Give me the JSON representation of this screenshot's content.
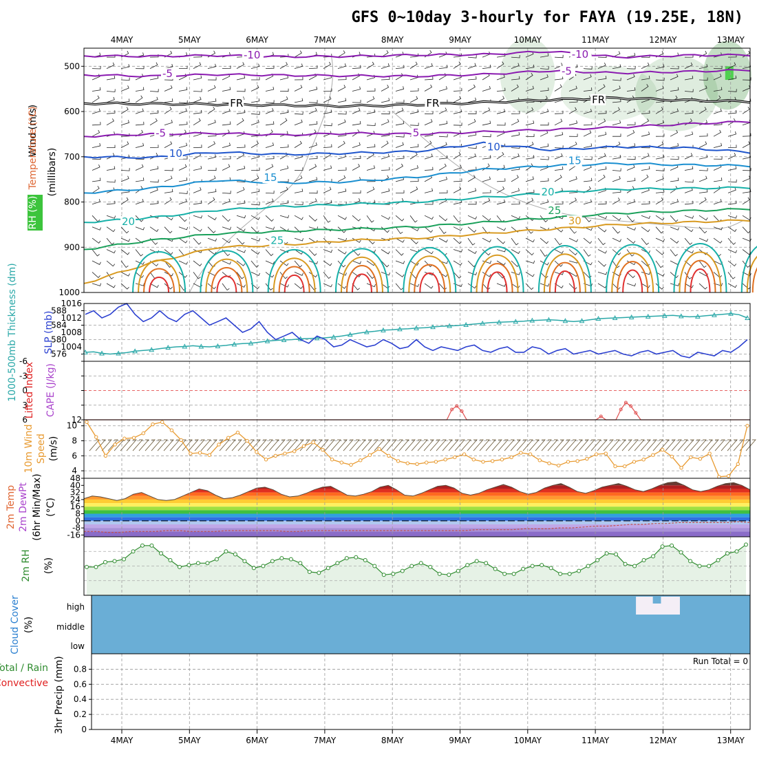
{
  "chart_data": {
    "type": "meteogram",
    "title": "GFS 0~10day 3-hourly for FAYA (19.25E, 18N)",
    "dates": [
      "4MAY",
      "5MAY",
      "6MAY",
      "7MAY",
      "8MAY",
      "9MAY",
      "10MAY",
      "11MAY",
      "12MAY",
      "13MAY"
    ],
    "panels": [
      {
        "name": "upper-air",
        "ylabels": [
          {
            "text": "Wind (m/s)",
            "color": "#000000"
          },
          {
            "text": "Temperature (°C)",
            "color": "#dd6633"
          },
          {
            "text": "RH (%)",
            "color": "#2e8b2e"
          },
          {
            "text": "(millibars)",
            "color": "#000000"
          }
        ],
        "yticks": [
          "500",
          "600",
          "700",
          "800",
          "900",
          "1000"
        ],
        "ylim": [
          1000,
          460
        ],
        "isotherm_labels": [
          {
            "text": "-10",
            "day": 1.8,
            "p": 478,
            "color": "#8a1ab0"
          },
          {
            "text": "-10",
            "day": 6.65,
            "p": 477,
            "color": "#8a1ab0"
          },
          {
            "text": "-5",
            "day": 0.6,
            "p": 519,
            "color": "#8a1ab0"
          },
          {
            "text": "-5",
            "day": 6.5,
            "p": 514,
            "color": "#8a1ab0"
          },
          {
            "text": "FR",
            "day": 1.6,
            "p": 585,
            "color": "#000000"
          },
          {
            "text": "FR",
            "day": 4.5,
            "p": 585,
            "color": "#000000"
          },
          {
            "text": "FR",
            "day": 6.95,
            "p": 577,
            "color": "#000000"
          },
          {
            "text": "-5",
            "day": 0.5,
            "p": 651,
            "color": "#8a1ab0"
          },
          {
            "text": "5",
            "day": 4.3,
            "p": 650,
            "color": "#8a1ab0"
          },
          {
            "text": "10",
            "day": 0.7,
            "p": 696,
            "color": "#1f55cc"
          },
          {
            "text": "10",
            "day": 5.4,
            "p": 681,
            "color": "#1f55cc"
          },
          {
            "text": "15",
            "day": 2.1,
            "p": 749,
            "color": "#1a8fd0"
          },
          {
            "text": "15",
            "day": 6.6,
            "p": 712,
            "color": "#1a8fd0"
          },
          {
            "text": "20",
            "day": 0.0,
            "p": 846,
            "color": "#16b0a8"
          },
          {
            "text": "20",
            "day": 6.2,
            "p": 781,
            "color": "#16b0a8"
          },
          {
            "text": "25",
            "day": 2.2,
            "p": 888,
            "color": "#16b0a8"
          },
          {
            "text": "25",
            "day": 6.3,
            "p": 822,
            "color": "#1aa05a"
          },
          {
            "text": "30",
            "day": 6.6,
            "p": 845,
            "color": "#d89a20"
          }
        ],
        "isotherm_lines": [
          {
            "temp": -10,
            "color": "#8a1ab0",
            "p": [
              477,
              478,
              476,
              479,
              478,
              475,
              474,
              467,
              480,
              476,
              475
            ]
          },
          {
            "temp": -5,
            "color": "#8a1ab0",
            "p": [
              519,
              522,
              518,
              520,
              521,
              522,
              518,
              510,
              515,
              512,
              508
            ]
          },
          {
            "temp": 0,
            "color": "#000000",
            "p": [
              582,
              583,
              584,
              586,
              588,
              585,
              580,
              574,
              570,
              575,
              578
            ]
          },
          {
            "temp": 5,
            "color": "#8a1ab0",
            "p": [
              655,
              650,
              648,
              652,
              648,
              650,
              645,
              640,
              635,
              628,
              622
            ]
          },
          {
            "temp": 10,
            "color": "#1f55cc",
            "p": [
              700,
              702,
              690,
              695,
              692,
              688,
              670,
              685,
              678,
              680,
              690
            ]
          },
          {
            "temp": 15,
            "color": "#1a8fd0",
            "p": [
              780,
              770,
              752,
              758,
              755,
              745,
              728,
              720,
              715,
              718,
              720
            ]
          },
          {
            "temp": 20,
            "color": "#16b0a8",
            "p": [
              845,
              835,
              818,
              810,
              805,
              800,
              790,
              780,
              772,
              770,
              768
            ]
          },
          {
            "temp": 25,
            "color": "#1aa05a",
            "p": [
              905,
              885,
              870,
              865,
              860,
              855,
              845,
              835,
              825,
              820,
              815
            ]
          },
          {
            "temp": 30,
            "color": "#d89a20",
            "p": [
              980,
              935,
              900,
              895,
              885,
              880,
              870,
              860,
              850,
              845,
              840
            ]
          }
        ]
      },
      {
        "name": "thickness-slp",
        "ylabels": [
          {
            "text": "1000-500mb Thickness (dm)",
            "color": "#2aa8a8"
          },
          {
            "text": "SLP (mb)",
            "color": "#2a3fd0"
          }
        ],
        "left_ticks": [
          "588",
          "584",
          "580",
          "576"
        ],
        "right_ticks": [
          "1016",
          "1012",
          "1008",
          "1004"
        ],
        "thickness_series": [
          {
            "color": "#2aa8a8"
          }
        ],
        "slp_series": [
          {
            "color": "#2a3fd0"
          }
        ],
        "thickness_dm": [
          576.5,
          576.6,
          576.2,
          576,
          576.2,
          576.4,
          576.8,
          577,
          577.2,
          577.5,
          577.8,
          578,
          578.1,
          578.3,
          578.1,
          578,
          578.2,
          578.4,
          578.7,
          578.9,
          579,
          579.3,
          579.6,
          579.8,
          579.9,
          580,
          580.2,
          580.3,
          580.4,
          580.5,
          580.7,
          581,
          581.4,
          581.8,
          582.1,
          582.3,
          582.6,
          582.7,
          582.9,
          583,
          583.2,
          583.3,
          583.5,
          583.7,
          583.8,
          583.9,
          584.1,
          584.3,
          584.5,
          584.7,
          584.8,
          584.9,
          585,
          585.1,
          585.3,
          585.4,
          585.5,
          585.4,
          585.2,
          585,
          585.2,
          585.5,
          585.8,
          585.9,
          586,
          586.1,
          586.2,
          586.3,
          586.4,
          586.5,
          586.6,
          586.7,
          586.5,
          586.3,
          586.4,
          586.6,
          586.8,
          587,
          587.2,
          586.9,
          586
        ],
        "slp_mb": [
          1013,
          1014,
          1012,
          1013,
          1015,
          1016,
          1013,
          1011,
          1012,
          1014,
          1012,
          1011,
          1013,
          1014,
          1012,
          1010,
          1011,
          1012,
          1010,
          1008,
          1009,
          1011,
          1008,
          1006,
          1007,
          1008,
          1006,
          1005,
          1007,
          1006,
          1004,
          1004.5,
          1006,
          1005,
          1004,
          1004.5,
          1006,
          1005,
          1003.5,
          1004,
          1006,
          1004,
          1003,
          1004,
          1003.5,
          1003,
          1004,
          1004.5,
          1003,
          1002.5,
          1003.5,
          1004,
          1002.5,
          1002.5,
          1004,
          1003.5,
          1002,
          1003,
          1003.5,
          1002,
          1002.5,
          1003,
          1002,
          1002.5,
          1003,
          1002,
          1001.5,
          1002.5,
          1003,
          1002,
          1002.5,
          1003,
          1001.5,
          1001,
          1002.5,
          1002,
          1001.5,
          1003,
          1002.5,
          1004,
          1006
        ]
      },
      {
        "name": "instability",
        "ylabels": [
          {
            "text": "Lifted Index",
            "color": "#e02020"
          },
          {
            "text": "CAPE (J/kg)",
            "color": "#aa44cc"
          }
        ],
        "yticks": [
          "-6",
          "-3",
          "0",
          "3",
          "6"
        ],
        "right_ticks": [
          "12"
        ],
        "cape_series": {
          "color": "#e05050",
          "values": [
            0,
            0,
            0,
            0,
            0,
            0,
            0,
            0,
            0,
            0,
            0,
            0,
            0,
            0,
            0,
            0,
            0,
            0,
            0,
            0,
            0,
            0,
            0,
            0,
            0,
            0,
            0,
            0,
            0,
            0,
            0,
            0,
            0,
            0,
            0,
            0,
            0,
            0,
            0,
            0,
            0,
            0,
            0,
            0,
            0,
            0,
            0,
            0,
            0,
            0,
            0,
            0,
            0,
            0,
            0,
            0,
            0,
            0,
            0,
            0,
            0,
            0,
            0,
            0,
            0,
            0,
            0,
            0,
            0,
            0,
            0,
            0,
            0,
            0,
            3,
            4,
            2.5,
            0,
            0,
            0,
            0,
            0,
            0,
            0,
            0,
            0,
            0,
            0,
            0,
            0,
            0,
            0,
            0,
            0,
            0,
            0,
            0,
            0,
            0,
            0,
            0,
            0,
            0,
            0,
            1,
            0,
            0,
            0,
            3,
            5,
            4,
            2,
            0,
            0,
            0,
            0,
            0,
            0,
            0,
            0,
            0,
            0,
            0,
            0,
            0,
            0,
            0,
            0,
            0,
            0,
            0,
            0,
            0,
            0,
            0
          ]
        }
      },
      {
        "name": "10m-wind",
        "ylabels": [
          {
            "text": "10m Wind Speed (m/s) & Barbs",
            "color": "#e89a30"
          }
        ],
        "yticks": [
          "10",
          "8",
          "6",
          "4"
        ],
        "ylim": [
          3,
          10.8
        ],
        "wind_speed_ms": [
          10.5,
          8.5,
          6,
          7.5,
          8.3,
          8.4,
          9,
          10.2,
          10.5,
          9.4,
          8.1,
          6.3,
          6.4,
          6.1,
          7.5,
          8.4,
          9.1,
          8,
          6.5,
          5.5,
          6,
          6.3,
          6.6,
          7.3,
          7.8,
          6.8,
          5.5,
          5.1,
          4.8,
          5.4,
          6.1,
          6.9,
          6,
          5.3,
          5,
          4.9,
          5.1,
          5.2,
          5.5,
          5.8,
          6.2,
          5.5,
          5.2,
          5.3,
          5.5,
          5.8,
          6.4,
          6.2,
          5.4,
          5,
          4.7,
          5.2,
          5.3,
          5.6,
          6.2,
          6.3,
          4.6,
          4.6,
          5.2,
          5.5,
          6.1,
          6.8,
          5.9,
          4.4,
          5.8,
          5.6,
          6.3,
          3.2,
          3.3,
          4.9,
          10
        ]
      },
      {
        "name": "2m-temp",
        "ylabels": [
          {
            "text": "2m Temp",
            "color": "#e06633"
          },
          {
            "text": "2m DewPt",
            "color": "#aa44cc"
          },
          {
            "text": "(6hr Min/Max) (°C)",
            "color": "#000000"
          }
        ],
        "yticks": [
          "48",
          "40",
          "32",
          "24",
          "16",
          "8",
          "0",
          "-8",
          "-16"
        ],
        "ylim": [
          -18,
          48
        ],
        "temperature_c": [
          25,
          28,
          27,
          25,
          23,
          25,
          30,
          32,
          28,
          24,
          23,
          24,
          28,
          32,
          36,
          34,
          29,
          25,
          26,
          29,
          33,
          37,
          38,
          35,
          30,
          27,
          28,
          31,
          35,
          38,
          39,
          34,
          29,
          28,
          30,
          33,
          38,
          40,
          35,
          29,
          28,
          31,
          35,
          39,
          40,
          37,
          31,
          29,
          31,
          35,
          38,
          41,
          38,
          33,
          30,
          32,
          37,
          40,
          42,
          38,
          33,
          31,
          34,
          38,
          40,
          42,
          39,
          35,
          33,
          36,
          40,
          43,
          44,
          40,
          35,
          33,
          35,
          39,
          42,
          43,
          40,
          35
        ],
        "dewpoint_c": [
          -12,
          -12,
          -13,
          -13,
          -12,
          -12,
          -12,
          -11,
          -11,
          -12,
          -12,
          -12,
          -11,
          -11,
          -11,
          -11,
          -11,
          -12,
          -12,
          -11,
          -11,
          -11,
          -11,
          -11,
          -11,
          -11,
          -11,
          -11,
          -11,
          -11,
          -11,
          -11,
          -11,
          -10,
          -10,
          -10,
          -10,
          -9,
          -9,
          -9,
          -8,
          -8,
          -7,
          -6,
          -6,
          -5,
          -4,
          -4,
          -3,
          -3,
          -2,
          -2,
          -2,
          -2,
          -2,
          -1,
          -2
        ]
      },
      {
        "name": "2m-rh",
        "ylabels": [
          {
            "text": "2m RH",
            "color": "#2e8b2e"
          },
          {
            "text": "(%)",
            "color": "#000000"
          }
        ],
        "rh_percent": [
          29,
          29,
          34,
          35,
          37,
          45,
          51,
          51,
          43,
          36,
          29,
          31,
          33,
          33,
          37,
          45,
          42,
          35,
          28,
          30,
          35,
          38,
          37,
          33,
          24,
          23,
          28,
          33,
          38,
          39,
          36,
          30,
          21,
          22,
          25,
          30,
          33,
          29,
          22,
          21,
          25,
          31,
          35,
          33,
          27,
          22,
          22,
          27,
          30,
          31,
          28,
          22,
          22,
          25,
          30,
          36,
          43,
          42,
          32,
          30,
          36,
          40,
          50,
          51,
          44,
          35,
          30,
          30,
          36,
          43,
          45,
          52
        ]
      },
      {
        "name": "cloud-cover",
        "ylabels": [
          {
            "text": "Cloud Cover",
            "color": "#2a7fd0"
          },
          {
            "text": "(%)",
            "color": "#000000"
          }
        ],
        "yticks": [
          "high",
          "middle",
          "low"
        ],
        "fill_color": "#6aaed6",
        "clear_color": "#f4eef6",
        "clear_blocks": [
          {
            "level": "high",
            "from_day": 7.6,
            "to_day": 8.25
          },
          {
            "level": "middle",
            "from_day": 10.05,
            "to_day": 10.17
          }
        ],
        "partial_blocks": [
          {
            "level": "high",
            "from_day": 7.85,
            "to_day": 7.97
          }
        ]
      },
      {
        "name": "precip",
        "ylabels": [
          {
            "text": "Total / Rain",
            "color": "#2e8b2e"
          },
          {
            "text": "Convective",
            "color": "#e02020"
          },
          {
            "text": "3hr Precip (mm)",
            "color": "#000000"
          }
        ],
        "yticks": [
          "0.8",
          "0.6",
          "0.4",
          "0.2",
          "0"
        ],
        "ylim": [
          0,
          0.95
        ],
        "run_total": "Run Total = 0"
      }
    ]
  }
}
